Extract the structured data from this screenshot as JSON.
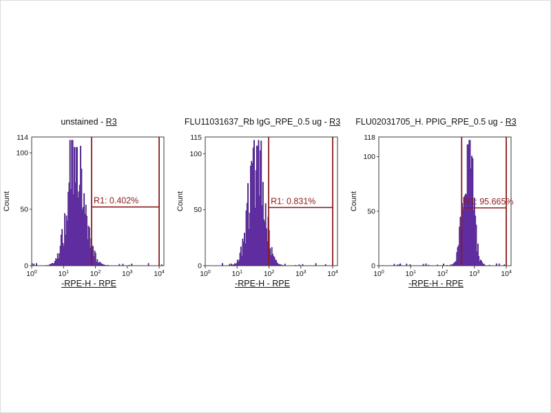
{
  "figure": {
    "background": "#ffffff",
    "histogram_color": "#5f2da0",
    "histogram_edge_color": "#41207a",
    "gate_color": "#8b1a1a",
    "axis_color": "#3a3a3a"
  },
  "chart_data": [
    {
      "type": "histogram",
      "title": "unstained - ",
      "title_link": "R3",
      "ylabel": "Count",
      "xlabel": "-RPE-H - RPE",
      "y_max": 114,
      "y_ticks": [
        0,
        50,
        100
      ],
      "x_tick_base": "10",
      "x_tick_exponents": [
        "0",
        "1",
        "2",
        "3",
        "4"
      ],
      "xlim_decades": [
        0,
        4.15
      ],
      "peak": {
        "center_decade": 1.4,
        "sigma": 0.27,
        "height_frac": 0.92
      },
      "gate": {
        "name": "R1",
        "label": "R1: 0.402%",
        "x1_decade": 1.88,
        "x2_decade": 4.0,
        "y_count": 52
      }
    },
    {
      "type": "histogram",
      "title": "FLU11031637_Rb IgG_RPE_0.5 ug - ",
      "title_link": "R3",
      "ylabel": "Count",
      "xlabel": "-RPE-H - RPE",
      "y_max": 115,
      "y_ticks": [
        0,
        50,
        100
      ],
      "x_tick_base": "10",
      "x_tick_exponents": [
        "0",
        "1",
        "2",
        "3",
        "4"
      ],
      "xlim_decades": [
        0,
        4.15
      ],
      "peak": {
        "center_decade": 1.62,
        "sigma": 0.24,
        "height_frac": 0.93
      },
      "gate": {
        "name": "R1",
        "label": "R1: 0.831%",
        "x1_decade": 1.99,
        "x2_decade": 4.0,
        "y_count": 52
      }
    },
    {
      "type": "histogram",
      "title": "FLU02031705_H. PPIG_RPE_0.5 ug - ",
      "title_link": "R3",
      "ylabel": "Count",
      "xlabel": "-RPE-H - RPE",
      "y_max": 118,
      "y_ticks": [
        0,
        50,
        100
      ],
      "x_tick_base": "10",
      "x_tick_exponents": [
        "0",
        "1",
        "2",
        "3",
        "4"
      ],
      "xlim_decades": [
        0,
        4.15
      ],
      "peak": {
        "center_decade": 2.8,
        "sigma": 0.16,
        "height_frac": 0.94
      },
      "gate": {
        "name": "R1",
        "label": "R1: 95.665%",
        "x1_decade": 2.6,
        "x2_decade": 4.0,
        "y_count": 53
      }
    }
  ]
}
